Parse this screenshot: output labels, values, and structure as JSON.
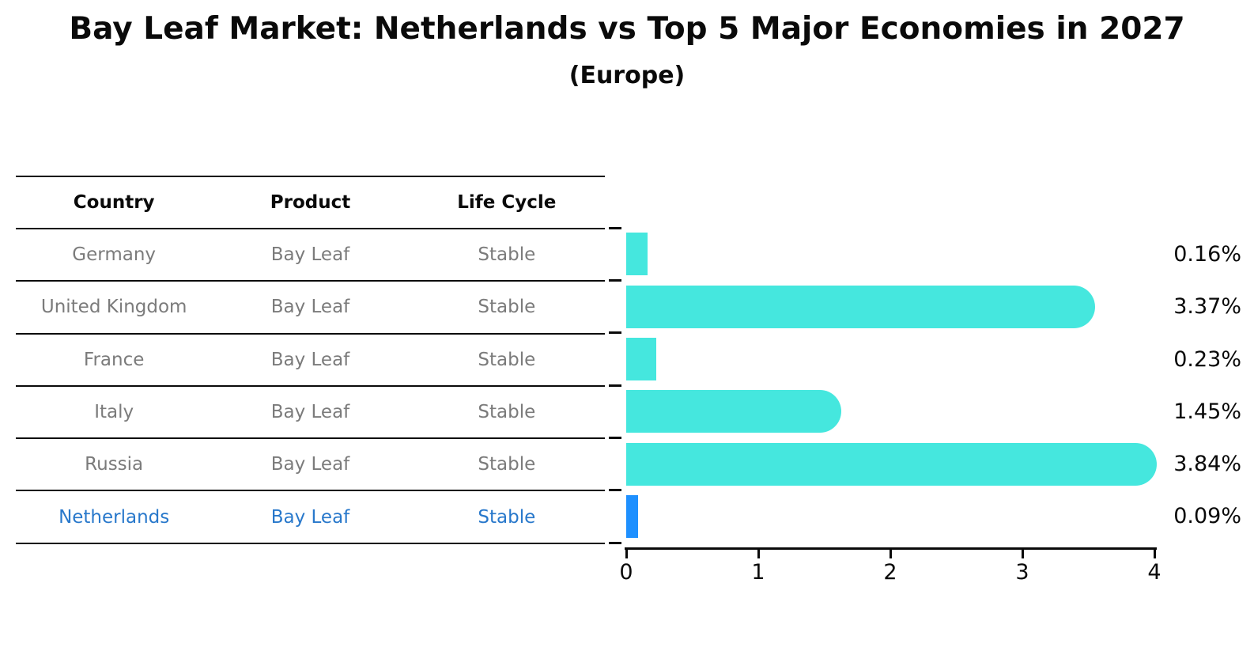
{
  "title": "Bay Leaf Market: Netherlands vs Top 5 Major Economies in 2027",
  "subtitle": "(Europe)",
  "table": {
    "headers": [
      "Country",
      "Product",
      "Life Cycle"
    ],
    "rows": [
      {
        "country": "Germany",
        "product": "Bay Leaf",
        "life_cycle": "Stable",
        "highlight": false
      },
      {
        "country": "United Kingdom",
        "product": "Bay Leaf",
        "life_cycle": "Stable",
        "highlight": false
      },
      {
        "country": "France",
        "product": "Bay Leaf",
        "life_cycle": "Stable",
        "highlight": false
      },
      {
        "country": "Italy",
        "product": "Bay Leaf",
        "life_cycle": "Stable",
        "highlight": false
      },
      {
        "country": "Russia",
        "product": "Bay Leaf",
        "life_cycle": "Stable",
        "highlight": false
      },
      {
        "country": "Netherlands",
        "product": "Bay Leaf",
        "life_cycle": "Stable",
        "highlight": true
      }
    ]
  },
  "chart_data": {
    "type": "bar",
    "orientation": "horizontal",
    "title": "Bay Leaf Market: Netherlands vs Top 5 Major Economies in 2027",
    "subtitle": "(Europe)",
    "categories": [
      "Germany",
      "United Kingdom",
      "France",
      "Italy",
      "Russia",
      "Netherlands"
    ],
    "values": [
      0.16,
      3.37,
      0.23,
      1.45,
      3.84,
      0.09
    ],
    "value_labels": [
      "0.16%",
      "3.37%",
      "0.23%",
      "1.45%",
      "3.84%",
      "0.09%"
    ],
    "xticks": [
      "0",
      "1",
      "2",
      "3",
      "4"
    ],
    "xlim": [
      0,
      4
    ],
    "grid": false,
    "bar_color": "#45e7de",
    "highlight_index": 5,
    "highlight_color": "#1e90ff",
    "highlight_text_color": "#2878cb"
  }
}
